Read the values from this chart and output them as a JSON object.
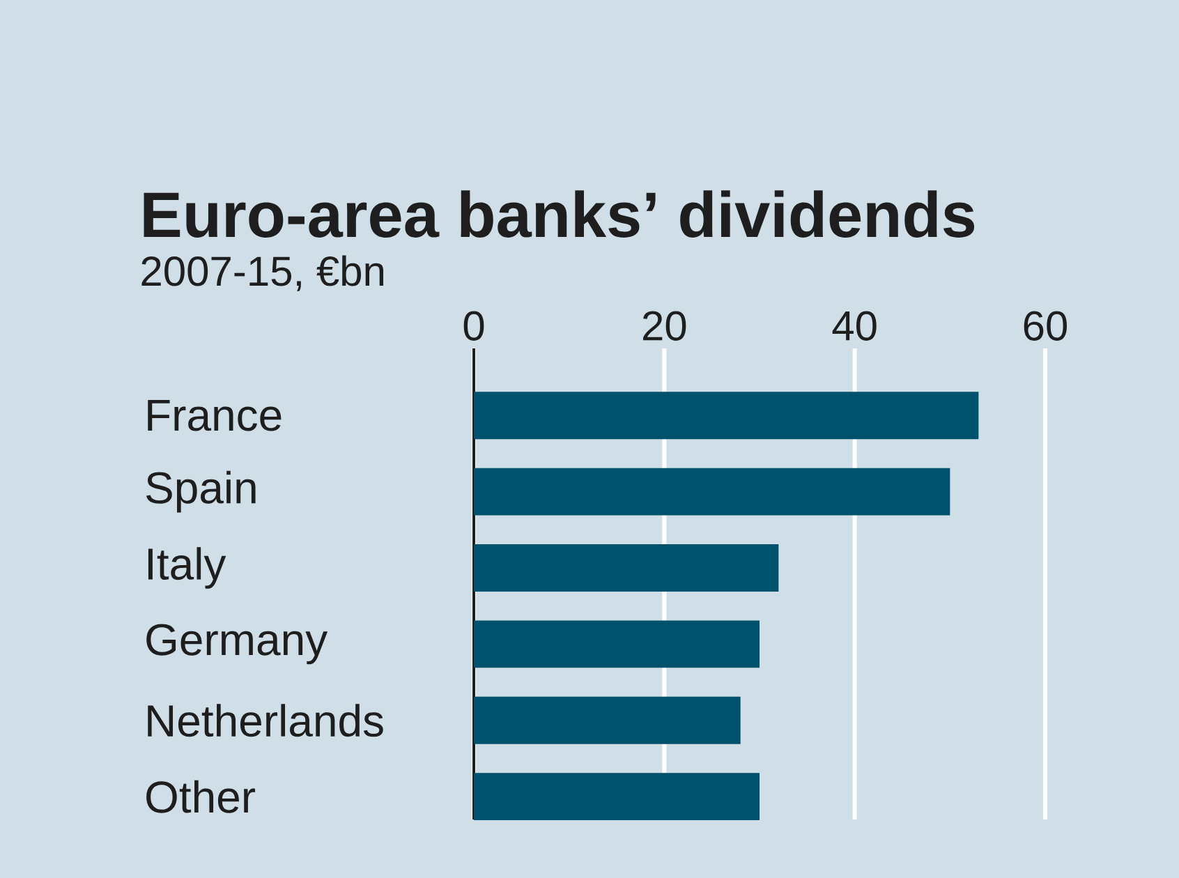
{
  "chart_data": {
    "type": "bar",
    "orientation": "horizontal",
    "title": "Euro-area banks’ dividends",
    "subtitle": "2007-15, €bn",
    "categories": [
      "France",
      "Spain",
      "Italy",
      "Germany",
      "Netherlands",
      "Other"
    ],
    "values": [
      53,
      50,
      32,
      30,
      28,
      30
    ],
    "color": "#00516b",
    "xlim": [
      0,
      60
    ],
    "xticks": [
      0,
      20,
      40,
      60
    ],
    "grid": "x"
  }
}
